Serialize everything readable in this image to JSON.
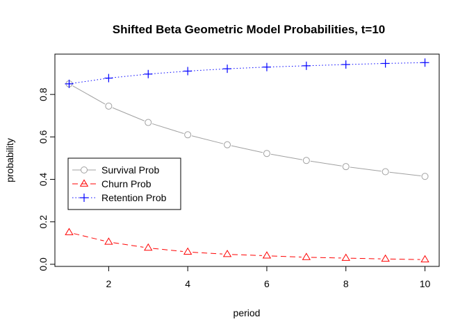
{
  "chart_data": {
    "type": "line",
    "title": "Shifted Beta Geometric Model Probabilities, t=10",
    "xlabel": "period",
    "ylabel": "probability",
    "xlim": [
      0.64,
      10.36
    ],
    "ylim": [
      -0.01,
      0.99
    ],
    "x_ticks": [
      "2",
      "4",
      "6",
      "8",
      "10"
    ],
    "y_ticks": [
      "0.0",
      "0.2",
      "0.4",
      "0.6",
      "0.8"
    ],
    "x": [
      1,
      2,
      3,
      4,
      5,
      6,
      7,
      8,
      9,
      10
    ],
    "grid": false,
    "legend_position": "left-middle",
    "series": [
      {
        "name": "Survival Prob",
        "color": "#a0a0a0",
        "line": "solid",
        "marker": "circle",
        "values": [
          0.85,
          0.745,
          0.668,
          0.61,
          0.563,
          0.522,
          0.489,
          0.46,
          0.436,
          0.414
        ]
      },
      {
        "name": "Churn Prob",
        "color": "#ff0000",
        "line": "dashed",
        "marker": "triangle",
        "values": [
          0.15,
          0.105,
          0.077,
          0.058,
          0.047,
          0.04,
          0.033,
          0.029,
          0.025,
          0.022
        ]
      },
      {
        "name": "Retention Prob",
        "color": "#0000ff",
        "line": "dotted",
        "marker": "plus",
        "values": [
          0.85,
          0.877,
          0.896,
          0.91,
          0.921,
          0.929,
          0.935,
          0.941,
          0.946,
          0.95
        ]
      }
    ]
  }
}
